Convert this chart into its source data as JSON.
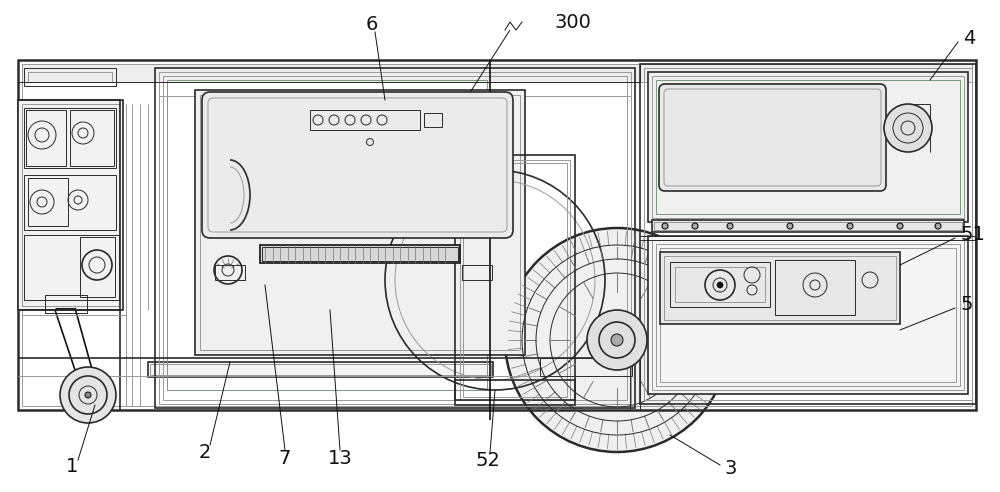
{
  "bg_color": "#ffffff",
  "lc": "#2a2a2a",
  "lg": "#999999",
  "mg": "#777777",
  "dk": "#111111",
  "green": "#7a9a7a",
  "label_fs": 14,
  "figw": 10.0,
  "figh": 4.92,
  "dpi": 100
}
